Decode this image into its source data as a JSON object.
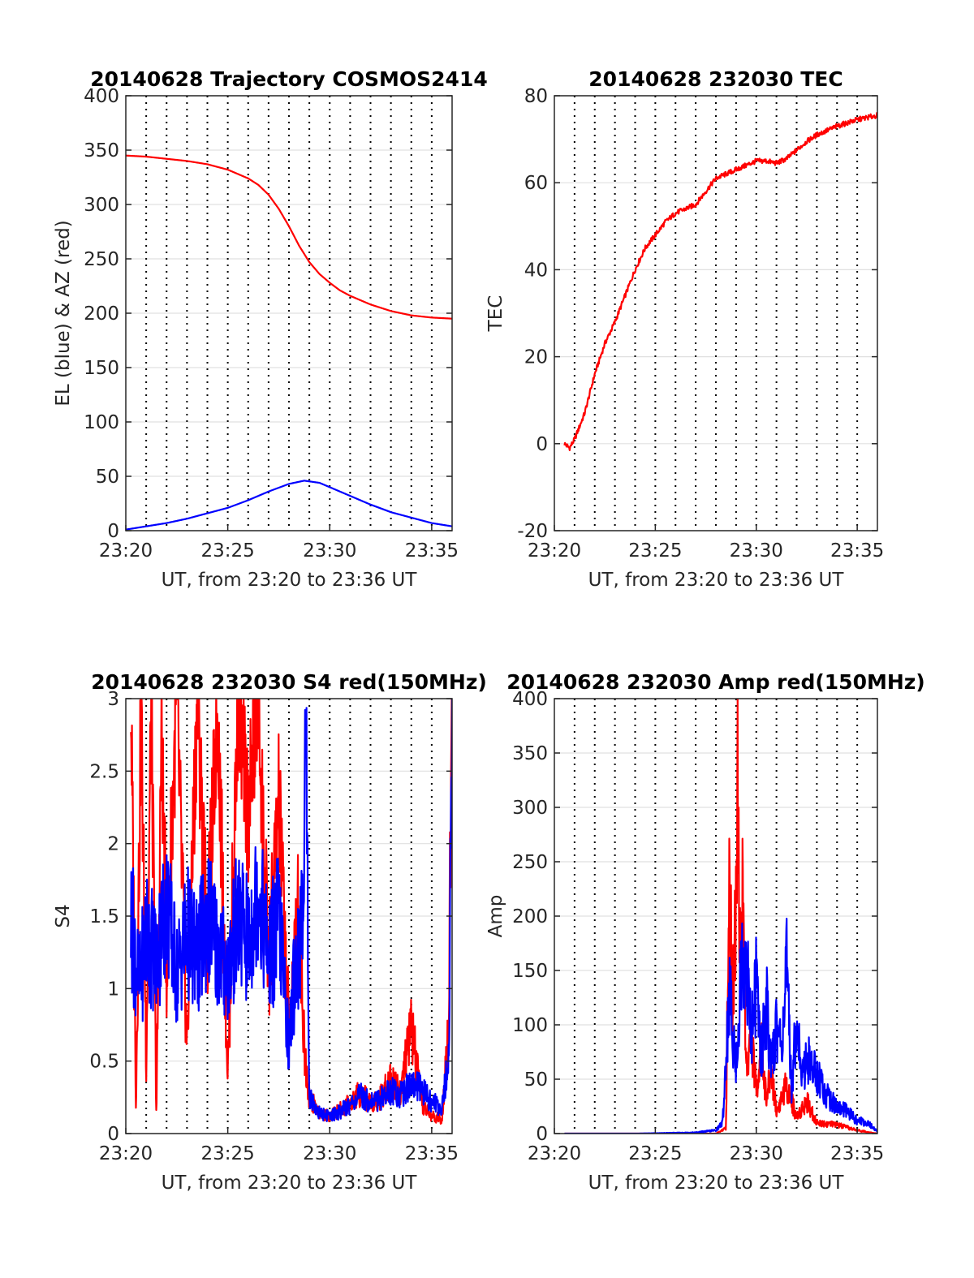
{
  "figure": {
    "background": "#ffffff"
  },
  "chart_data": [
    {
      "type": "line",
      "title": "20140628 Trajectory COSMOS2414",
      "xlabel": "UT, from 23:20 to 23:36 UT",
      "ylabel": "EL (blue) & AZ (red)",
      "xlim": [
        "23:20",
        "23:36"
      ],
      "ylim": [
        0,
        400
      ],
      "xticks": [
        "23:20",
        "23:25",
        "23:30",
        "23:35"
      ],
      "yticks": [
        0,
        50,
        100,
        150,
        200,
        250,
        300,
        350,
        400
      ],
      "grid": true,
      "series": [
        {
          "color": "#ff0000",
          "x": [
            "23:20",
            "23:21",
            "23:22",
            "23:23",
            "23:24",
            "23:25",
            "23:26",
            "23:26:30",
            "23:27",
            "23:27:30",
            "23:28",
            "23:28:30",
            "23:29",
            "23:29:30",
            "23:30",
            "23:30:30",
            "23:31",
            "23:32",
            "23:33",
            "23:34",
            "23:35",
            "23:36"
          ],
          "values": [
            345,
            344,
            342,
            340,
            337,
            332,
            324,
            318,
            309,
            296,
            280,
            262,
            247,
            236,
            228,
            221,
            216,
            208,
            202,
            198,
            196,
            195
          ]
        },
        {
          "color": "#0000ff",
          "x": [
            "23:20",
            "23:21",
            "23:22",
            "23:23",
            "23:24",
            "23:25",
            "23:26",
            "23:27",
            "23:28",
            "23:28:45",
            "23:29:30",
            "23:30",
            "23:31",
            "23:32",
            "23:33",
            "23:34",
            "23:35",
            "23:36"
          ],
          "values": [
            1,
            4,
            7,
            11,
            16,
            21,
            28,
            36,
            43,
            46,
            44,
            40,
            32,
            24,
            17,
            12,
            7,
            4
          ]
        }
      ]
    },
    {
      "type": "line",
      "title": "20140628 232030 TEC",
      "xlabel": "UT, from 23:20 to 23:36 UT",
      "ylabel": "TEC",
      "xlim": [
        "23:20",
        "23:36"
      ],
      "ylim": [
        -20,
        80
      ],
      "xticks": [
        "23:20",
        "23:25",
        "23:30",
        "23:35"
      ],
      "yticks": [
        -20,
        0,
        20,
        40,
        60,
        80
      ],
      "grid": true,
      "series": [
        {
          "color": "#ff0000",
          "x": [
            "23:20:30",
            "23:20:45",
            "23:21",
            "23:21:30",
            "23:22",
            "23:22:30",
            "23:23",
            "23:23:30",
            "23:24",
            "23:24:30",
            "23:25",
            "23:25:30",
            "23:26",
            "23:26:30",
            "23:27",
            "23:27:30",
            "23:28",
            "23:28:30",
            "23:29",
            "23:29:30",
            "23:30",
            "23:30:30",
            "23:31",
            "23:31:30",
            "23:32",
            "23:32:30",
            "23:33",
            "23:34",
            "23:35",
            "23:36"
          ],
          "values": [
            0,
            -1,
            1,
            7,
            16,
            23,
            28,
            34,
            40,
            45,
            48,
            51,
            53,
            54,
            55,
            58,
            61,
            62,
            63,
            64,
            65,
            65,
            64.5,
            65.5,
            67.5,
            69.5,
            71,
            73,
            74.5,
            75.5
          ]
        }
      ]
    },
    {
      "type": "line",
      "title": "20140628 232030 S4 red(150MHz)",
      "xlabel": "UT, from 23:20 to 23:36 UT",
      "ylabel": "S4",
      "xlim": [
        "23:20",
        "23:36"
      ],
      "ylim": [
        0,
        3
      ],
      "xticks": [
        "23:20",
        "23:25",
        "23:30",
        "23:35"
      ],
      "yticks": [
        0,
        0.5,
        1,
        1.5,
        2,
        2.5,
        3
      ],
      "grid": true,
      "series": [
        {
          "color": "#ff0000",
          "x": [
            "23:20:15",
            "23:20:30",
            "23:20:45",
            "23:21",
            "23:21:15",
            "23:21:30",
            "23:21:45",
            "23:22",
            "23:22:30",
            "23:23",
            "23:23:30",
            "23:24",
            "23:24:30",
            "23:25",
            "23:25:30",
            "23:26",
            "23:26:30",
            "23:27",
            "23:27:30",
            "23:28",
            "23:28:30",
            "23:28:45",
            "23:29",
            "23:29:30",
            "23:30",
            "23:30:30",
            "23:31",
            "23:31:30",
            "23:32",
            "23:32:30",
            "23:33",
            "23:33:30",
            "23:34",
            "23:34:30",
            "23:35",
            "23:35:30",
            "23:35:50",
            "23:36"
          ],
          "values": [
            3,
            0.2,
            3,
            0.5,
            3,
            0.1,
            2.8,
            1.2,
            3,
            0.6,
            3,
            1.3,
            3,
            0.4,
            3,
            2.2,
            3,
            1.1,
            2.3,
            0.7,
            1.6,
            0.6,
            0.25,
            0.14,
            0.12,
            0.16,
            0.22,
            0.28,
            0.21,
            0.25,
            0.38,
            0.3,
            0.75,
            0.2,
            0.12,
            0.1,
            0.8,
            3
          ]
        },
        {
          "color": "#0000ff",
          "x": [
            "23:20:15",
            "23:20:40",
            "23:21",
            "23:21:30",
            "23:22",
            "23:22:30",
            "23:23",
            "23:23:30",
            "23:24",
            "23:24:30",
            "23:25",
            "23:25:30",
            "23:26",
            "23:26:30",
            "23:27",
            "23:27:30",
            "23:28",
            "23:28:20",
            "23:28:40",
            "23:28:50",
            "23:29",
            "23:29:30",
            "23:30",
            "23:30:30",
            "23:31",
            "23:31:30",
            "23:32",
            "23:32:30",
            "23:33",
            "23:33:30",
            "23:34",
            "23:34:30",
            "23:35",
            "23:35:30",
            "23:35:50",
            "23:36"
          ],
          "values": [
            1.5,
            1.0,
            1.4,
            1.2,
            1.6,
            1.1,
            1.4,
            1.2,
            1.5,
            1.3,
            1.1,
            1.5,
            1.3,
            1.7,
            1.2,
            1.5,
            0.6,
            1.2,
            1.4,
            3,
            0.25,
            0.14,
            0.12,
            0.15,
            0.2,
            0.26,
            0.22,
            0.24,
            0.3,
            0.27,
            0.35,
            0.3,
            0.22,
            0.18,
            0.5,
            3
          ]
        }
      ]
    },
    {
      "type": "line",
      "title": "20140628 232030 Amp red(150MHz)",
      "xlabel": "UT, from 23:20 to 23:36 UT",
      "ylabel": "Amp",
      "xlim": [
        "23:20",
        "23:36"
      ],
      "ylim": [
        0,
        400
      ],
      "xticks": [
        "23:20",
        "23:25",
        "23:30",
        "23:35"
      ],
      "yticks": [
        0,
        50,
        100,
        150,
        200,
        250,
        300,
        350,
        400
      ],
      "grid": true,
      "series": [
        {
          "color": "#ff0000",
          "x": [
            "23:20:30",
            "23:24",
            "23:28",
            "23:28:30",
            "23:28:40",
            "23:28:50",
            "23:29",
            "23:29:05",
            "23:29:10",
            "23:29:20",
            "23:29:30",
            "23:29:45",
            "23:30",
            "23:30:15",
            "23:30:30",
            "23:30:45",
            "23:31",
            "23:31:30",
            "23:32",
            "23:32:30",
            "23:33",
            "23:34",
            "23:35",
            "23:36"
          ],
          "values": [
            0,
            0,
            0,
            5,
            250,
            120,
            230,
            392,
            150,
            210,
            60,
            90,
            40,
            80,
            30,
            60,
            20,
            45,
            15,
            30,
            10,
            8,
            3,
            0
          ]
        },
        {
          "color": "#0000ff",
          "x": [
            "23:20:30",
            "23:24",
            "23:27",
            "23:28",
            "23:28:20",
            "23:28:40",
            "23:29",
            "23:29:15",
            "23:29:30",
            "23:29:45",
            "23:30",
            "23:30:15",
            "23:30:30",
            "23:30:45",
            "23:31",
            "23:31:15",
            "23:31:30",
            "23:31:45",
            "23:32",
            "23:32:15",
            "23:32:30",
            "23:33",
            "23:33:30",
            "23:34",
            "23:34:30",
            "23:35",
            "23:35:30",
            "23:36"
          ],
          "values": [
            0,
            0,
            1,
            3,
            10,
            130,
            60,
            150,
            160,
            90,
            140,
            70,
            120,
            60,
            100,
            80,
            150,
            40,
            110,
            50,
            70,
            55,
            35,
            25,
            20,
            12,
            10,
            2
          ]
        }
      ]
    }
  ]
}
